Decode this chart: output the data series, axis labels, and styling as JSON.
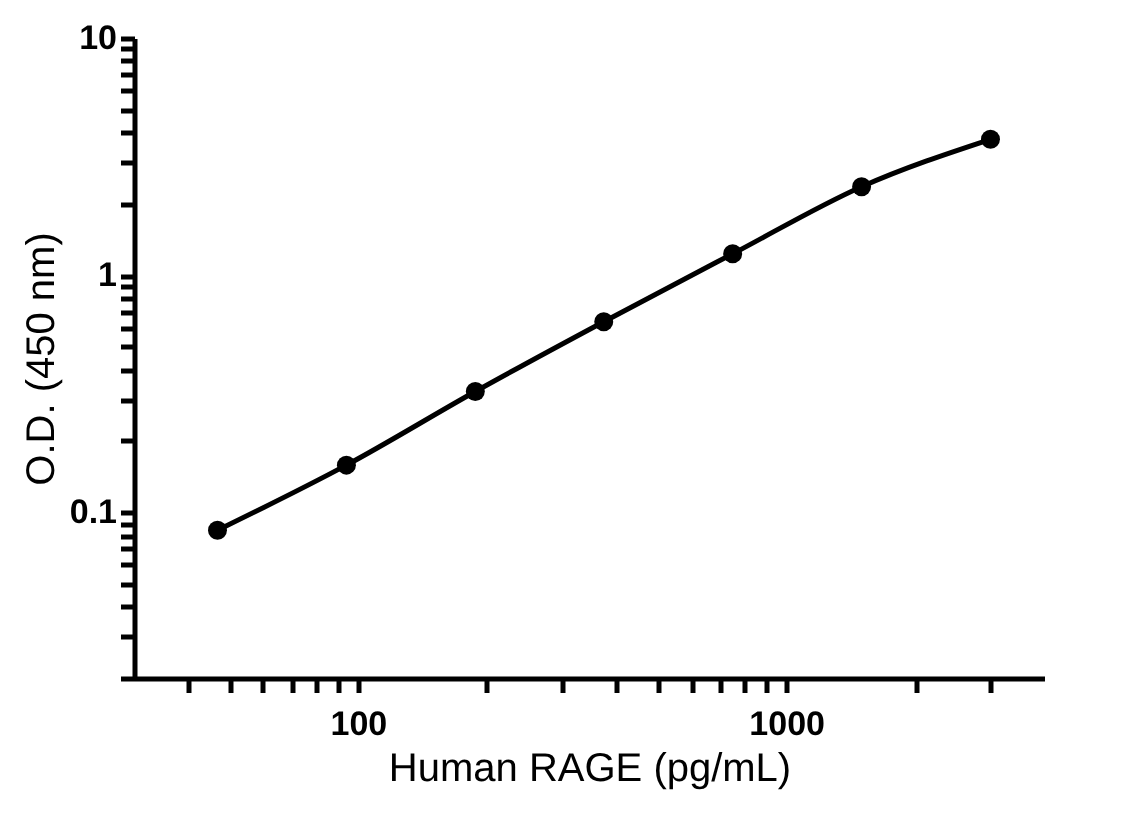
{
  "chart_data": {
    "type": "line",
    "xlabel": "Human RAGE (pg/mL)",
    "ylabel": "O.D. (450 nm)",
    "log": "xy",
    "grid": false,
    "marker": "circle",
    "line_style": "solid",
    "x": [
      47,
      94,
      188,
      375,
      750,
      1500,
      3000
    ],
    "series": [
      {
        "color": "#000000",
        "values": [
          0.084,
          0.158,
          0.323,
          0.636,
          1.23,
          2.36,
          3.74
        ]
      }
    ],
    "xlim": [
      30,
      4000
    ],
    "ylim": [
      0.02,
      10
    ],
    "xticks": [
      {
        "value": 40,
        "label": null
      },
      {
        "value": 50,
        "label": null
      },
      {
        "value": 60,
        "label": null
      },
      {
        "value": 70,
        "label": null
      },
      {
        "value": 80,
        "label": null
      },
      {
        "value": 90,
        "label": null
      },
      100,
      {
        "value": 200,
        "label": null
      },
      {
        "value": 300,
        "label": null
      },
      {
        "value": 400,
        "label": null
      },
      {
        "value": 500,
        "label": null
      },
      {
        "value": 600,
        "label": null
      },
      {
        "value": 700,
        "label": null
      },
      {
        "value": 800,
        "label": null
      },
      {
        "value": 900,
        "label": null
      },
      1000,
      {
        "value": 2000,
        "label": null
      },
      {
        "value": 3000,
        "label": null
      }
    ],
    "yticks": [
      {
        "value": 0.02,
        "label": null
      },
      {
        "value": 0.03,
        "label": null
      },
      {
        "value": 0.04,
        "label": null
      },
      {
        "value": 0.05,
        "label": null
      },
      {
        "value": 0.06,
        "label": null
      },
      {
        "value": 0.07,
        "label": null
      },
      {
        "value": 0.08,
        "label": null
      },
      {
        "value": 0.09,
        "label": null
      },
      0.1,
      {
        "value": 0.2,
        "label": null
      },
      {
        "value": 0.3,
        "label": null
      },
      {
        "value": 0.4,
        "label": null
      },
      {
        "value": 0.5,
        "label": null
      },
      {
        "value": 0.6,
        "label": null
      },
      {
        "value": 0.7,
        "label": null
      },
      {
        "value": 0.8,
        "label": null
      },
      {
        "value": 0.9,
        "label": null
      },
      1,
      {
        "value": 2,
        "label": null
      },
      {
        "value": 3,
        "label": null
      },
      {
        "value": 4,
        "label": null
      },
      {
        "value": 5,
        "label": null
      },
      {
        "value": 6,
        "label": null
      },
      {
        "value": 7,
        "label": null
      },
      {
        "value": 8,
        "label": null
      },
      {
        "value": 9,
        "label": null
      },
      10
    ]
  }
}
